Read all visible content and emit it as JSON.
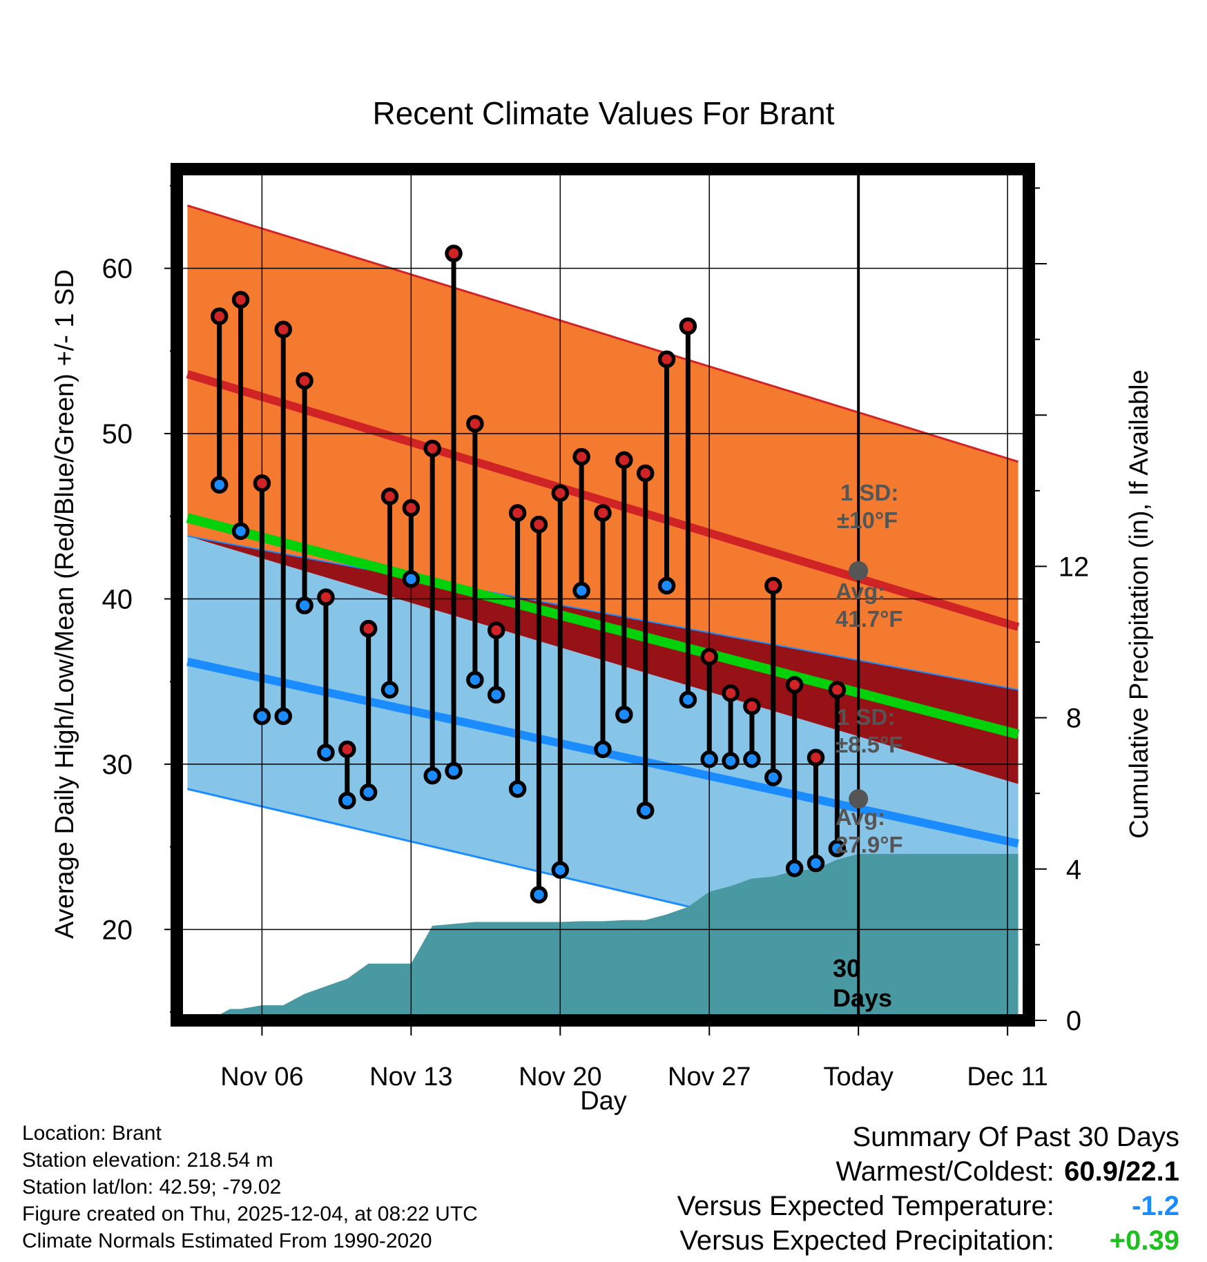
{
  "chart_data": {
    "type": "line",
    "title": "Recent Climate Values For Brant",
    "xlabel": "Day",
    "ylabel": "Average Daily High/Low/Mean (Red/Blue/Green) +/- 1 SD",
    "y2label": "Cumulative Precipitation (in), If Available",
    "xlim": [
      -1,
      39
    ],
    "ylim": [
      14.5,
      66
    ],
    "y2lim": [
      0,
      22.5
    ],
    "yticks": [
      20,
      30,
      40,
      50,
      60
    ],
    "y2ticks": [
      0,
      4,
      8,
      12
    ],
    "xticks": [
      {
        "x": 3,
        "label": "Nov 06"
      },
      {
        "x": 10,
        "label": "Nov 13"
      },
      {
        "x": 17,
        "label": "Nov 20"
      },
      {
        "x": 24,
        "label": "Nov 27"
      },
      {
        "x": 31,
        "label": "Today"
      },
      {
        "x": 38,
        "label": "Dec 11"
      }
    ],
    "today_x": 31,
    "normals_x": [
      -0.5,
      38.5
    ],
    "normal_high": [
      53.6,
      38.3
    ],
    "normal_high_upper": [
      63.8,
      48.3
    ],
    "normal_low": [
      36.2,
      25.2
    ],
    "normal_low_lower": [
      28.5,
      16.7
    ],
    "normal_mean": [
      44.9,
      31.8
    ],
    "normal_mean_lower": [
      43.8,
      28.8
    ],
    "normal_mean_upper": [
      43.8,
      34.5
    ],
    "days": [
      1,
      2,
      3,
      4,
      5,
      6,
      7,
      8,
      9,
      10,
      11,
      12,
      13,
      14,
      15,
      16,
      17,
      18,
      19,
      20,
      21,
      22,
      23,
      24,
      25,
      26,
      27,
      28,
      29,
      30
    ],
    "highs": [
      57.1,
      58.1,
      47.0,
      56.3,
      53.2,
      40.1,
      30.9,
      38.2,
      46.2,
      45.5,
      49.1,
      60.9,
      50.6,
      38.1,
      45.2,
      44.5,
      46.4,
      48.6,
      45.2,
      48.4,
      47.6,
      54.5,
      56.5,
      36.5,
      34.3,
      33.5,
      40.8,
      34.8,
      30.4,
      34.5
    ],
    "lows": [
      46.9,
      44.1,
      32.9,
      32.9,
      39.6,
      30.7,
      27.8,
      28.3,
      34.5,
      41.2,
      29.3,
      29.6,
      35.1,
      34.2,
      28.5,
      22.1,
      23.6,
      40.5,
      30.9,
      33.0,
      27.2,
      40.8,
      33.9,
      30.3,
      30.2,
      30.3,
      29.2,
      23.7,
      24.0,
      24.9
    ],
    "precip_x": [
      0,
      0.5,
      1,
      1.5,
      2,
      3,
      4,
      5,
      6,
      7,
      8,
      9,
      10,
      11,
      12,
      13,
      14,
      15,
      16,
      17,
      18,
      19,
      20,
      21,
      22,
      23,
      24,
      25,
      26,
      27,
      28,
      29,
      30,
      31,
      32,
      33,
      34,
      35,
      36,
      37,
      38,
      38.5
    ],
    "precip_y": [
      0,
      0,
      0.15,
      0.3,
      0.3,
      0.4,
      0.4,
      0.7,
      0.9,
      1.1,
      1.5,
      1.5,
      1.5,
      2.5,
      2.55,
      2.6,
      2.6,
      2.6,
      2.6,
      2.6,
      2.62,
      2.62,
      2.65,
      2.65,
      2.8,
      3.0,
      3.4,
      3.55,
      3.75,
      3.8,
      3.95,
      4.0,
      4.25,
      4.4,
      4.4,
      4.4,
      4.4,
      4.4,
      4.4,
      4.4,
      4.4,
      4.4
    ],
    "annotations": {
      "high_sd": "1 SD:",
      "high_sd_val": "±10°F",
      "high_avg": "Avg:",
      "high_avg_val": "41.7°F",
      "high_avg_y": 41.7,
      "low_sd": "1 SD:",
      "low_sd_val": "±8.5°F",
      "low_avg": "Avg:",
      "low_avg_val": "27.9°F",
      "low_avg_y": 27.9,
      "days_num": "30",
      "days_word": "Days"
    },
    "colors": {
      "high_band": "#f47a2f",
      "high_line": "#d02326",
      "low_band": "#86c4e8",
      "low_line": "#1a8cff",
      "mean_line": "#00d10a",
      "mean_band": "#971216",
      "precip": "#4899a2",
      "high_dot": "#d02326",
      "low_dot": "#1a8cff",
      "annotation": "#555555"
    }
  },
  "info": {
    "location": "Location: Brant",
    "elevation": "Station elevation: 218.54 m",
    "latlon": "Station lat/lon: 42.59; -79.02",
    "created": "Figure created on Thu, 2025-12-04, at 08:22 UTC",
    "normals": "Climate Normals Estimated From 1990-2020"
  },
  "summary": {
    "heading": "Summary Of Past 30 Days",
    "warmest_label": "Warmest/Coldest:",
    "warmest_value": "60.9/22.1",
    "temp_label": "Versus Expected Temperature:",
    "temp_value": "-1.2",
    "temp_color": "#1a8cff",
    "precip_label": "Versus Expected Precipitation:",
    "precip_value": "+0.39",
    "precip_color": "#1fbf1f"
  }
}
